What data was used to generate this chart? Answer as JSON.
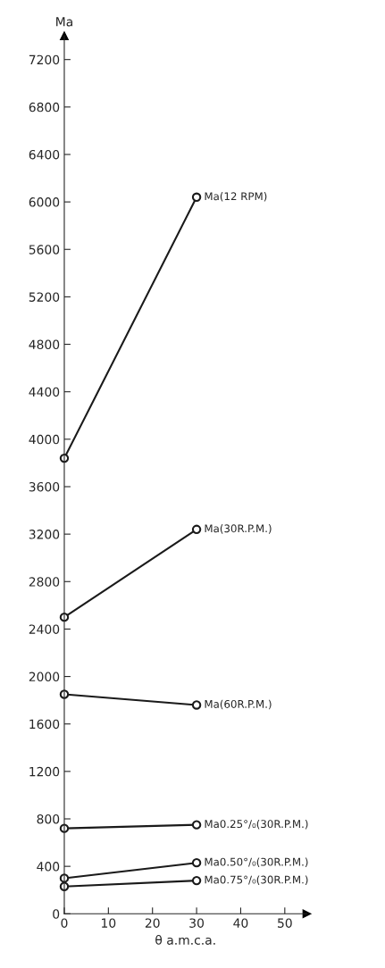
{
  "chart_data": {
    "type": "line",
    "xlabel": "θ a.m.c.a.",
    "ylabel": "Ma",
    "x": [
      0,
      30
    ],
    "xlim": [
      0,
      55
    ],
    "ylim": [
      0,
      7400
    ],
    "xticks": [
      0,
      10,
      20,
      30,
      40,
      50
    ],
    "yticks": [
      0,
      400,
      800,
      1200,
      1600,
      2000,
      2400,
      2800,
      3200,
      3600,
      4000,
      4400,
      4800,
      5200,
      5600,
      6000,
      6400,
      6800,
      7200
    ],
    "grid": false,
    "legend": false,
    "marker": "circle",
    "line_style": "solid",
    "series": [
      {
        "name": "Ma(12 RPM)",
        "color": "#1a1a1a",
        "values": [
          3840,
          6040
        ]
      },
      {
        "name": "Ma(30R.P.M.)",
        "color": "#1a1a1a",
        "values": [
          2500,
          3240
        ]
      },
      {
        "name": "Ma(60R.P.M.)",
        "color": "#1a1a1a",
        "values": [
          1850,
          1760
        ]
      },
      {
        "name": "Ma0.25°/₀(30R.P.M.)",
        "color": "#1a1a1a",
        "values": [
          720,
          750
        ]
      },
      {
        "name": "Ma0.50°/₀(30R.P.M.)",
        "color": "#1a1a1a",
        "values": [
          300,
          430
        ]
      },
      {
        "name": "Ma0.75°/₀(30R.P.M.)",
        "color": "#1a1a1a",
        "values": [
          230,
          280
        ]
      }
    ]
  }
}
